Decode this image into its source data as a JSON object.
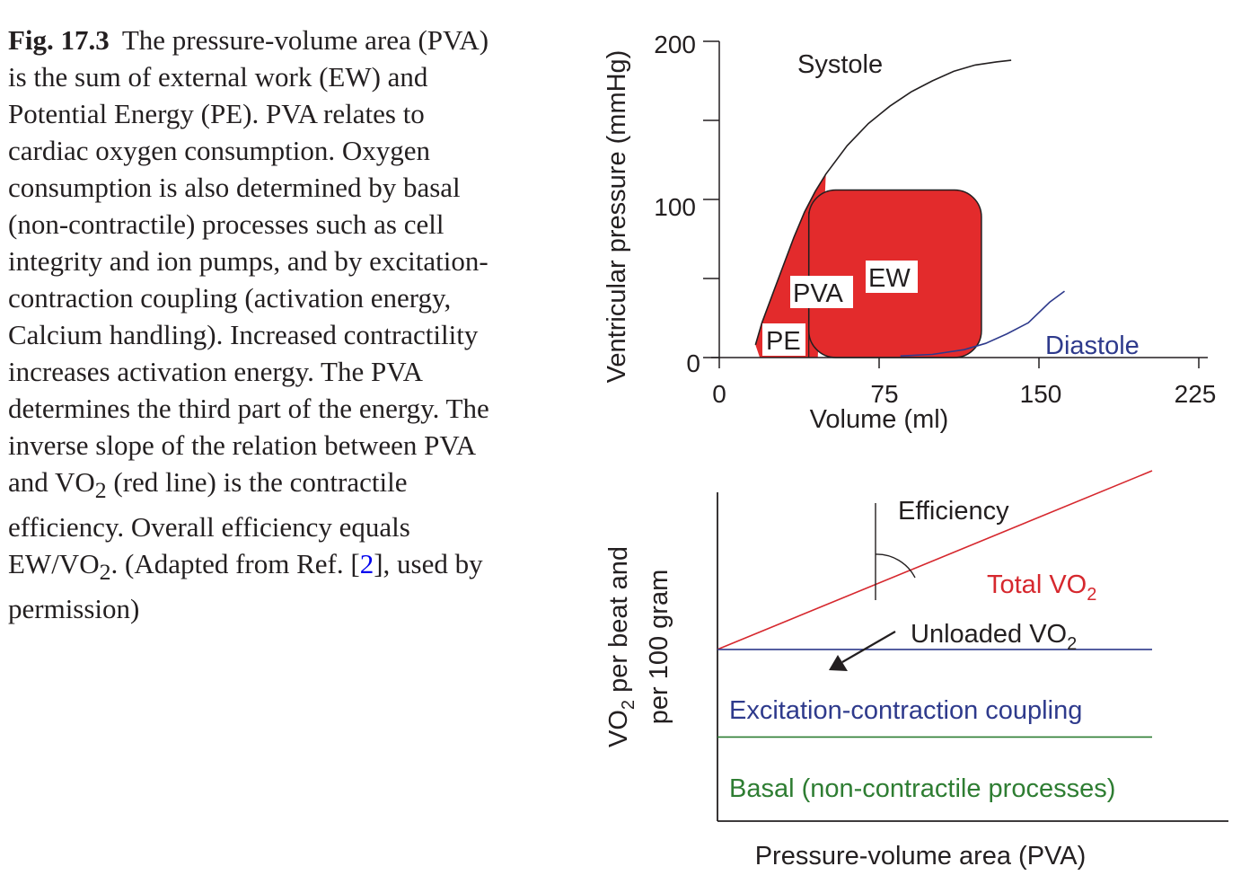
{
  "caption": {
    "label": "Fig. 17.3",
    "parts": {
      "p1": "The pressure-volume area (PVA) is the sum of external work (EW) and Potential Energy (PE). PVA relates to cardiac oxygen consumption. Oxygen consumption is also determined by basal (non-contractile) processes such as cell integrity and ion pumps, and by excitation-contraction coupling (activation energy, Calcium handling). Increased contractility increases activation energy. The PVA determines the third part of the energy. The inverse slope of the relation between PVA and VO",
      "sub1": "2",
      "p2": " (red line) is the contractile efficiency. Overall efficiency equals EW/VO",
      "sub2": "2",
      "p3": ". (Adapted from Ref. [",
      "ref": "2",
      "p4": "], used by permission)"
    }
  },
  "colors": {
    "fill_red": "#e32b2c",
    "systole": "#231f20",
    "diastole": "#2e3a8c",
    "total_vo2": "#d6282e",
    "ecc_line": "#2e3a8c",
    "basal_line": "#2e7d32"
  },
  "chart_data": [
    {
      "type": "line",
      "ylabel": "Ventricular pressure (mmHg)",
      "xlabel": "Volume (ml)",
      "xlim": [
        0,
        225
      ],
      "ylim": [
        0,
        200
      ],
      "x_ticks": [
        "0",
        "75",
        "150",
        "225"
      ],
      "y_ticks": [
        "0",
        "100",
        "200"
      ],
      "series": [
        {
          "name": "Systole",
          "points": [
            [
              17,
              8
            ],
            [
              20,
              22
            ],
            [
              25,
              40
            ],
            [
              30,
              58
            ],
            [
              35,
              76
            ],
            [
              40,
              92
            ],
            [
              45,
              105
            ],
            [
              50,
              116
            ],
            [
              60,
              134
            ],
            [
              70,
              148
            ],
            [
              80,
              159
            ],
            [
              90,
              168
            ],
            [
              100,
              175
            ],
            [
              110,
              181
            ],
            [
              120,
              185
            ],
            [
              130,
              187
            ],
            [
              137,
              188
            ]
          ]
        },
        {
          "name": "Diastole",
          "points": [
            [
              85,
              1
            ],
            [
              100,
              2
            ],
            [
              115,
              5
            ],
            [
              125,
              9
            ],
            [
              135,
              15
            ],
            [
              145,
              22
            ],
            [
              155,
              35
            ],
            [
              162,
              42
            ]
          ]
        }
      ],
      "regions": {
        "pe": "PE",
        "pva": "PVA",
        "ew": "EW"
      },
      "ew_loop": {
        "x_range": [
          42,
          123
        ],
        "y_range": [
          0,
          106
        ]
      }
    },
    {
      "type": "line",
      "ylabel_line1": "VO",
      "ylabel_sub": "2",
      "ylabel_rest": " per beat and",
      "ylabel_line2": "per 100 gram",
      "xlabel": "Pressure-volume area (PVA)",
      "labels": {
        "efficiency": "Efficiency",
        "total_prefix": "Total VO",
        "total_sub": "2",
        "unloaded_prefix": "Unloaded VO",
        "unloaded_sub": "2",
        "ecc": "Excitation-contraction coupling",
        "basal": "Basal (non-contractile processes)"
      },
      "series": [
        {
          "name": "Total VO2",
          "x": [
            0,
            1
          ],
          "y": [
            0.49,
            1.0
          ]
        },
        {
          "name": "Excitation-contraction coupling",
          "x": [
            0,
            1
          ],
          "y": [
            0.49,
            0.49
          ]
        },
        {
          "name": "Basal (non-contractile processes)",
          "x": [
            0,
            1
          ],
          "y": [
            0.24,
            0.24
          ]
        }
      ]
    }
  ]
}
